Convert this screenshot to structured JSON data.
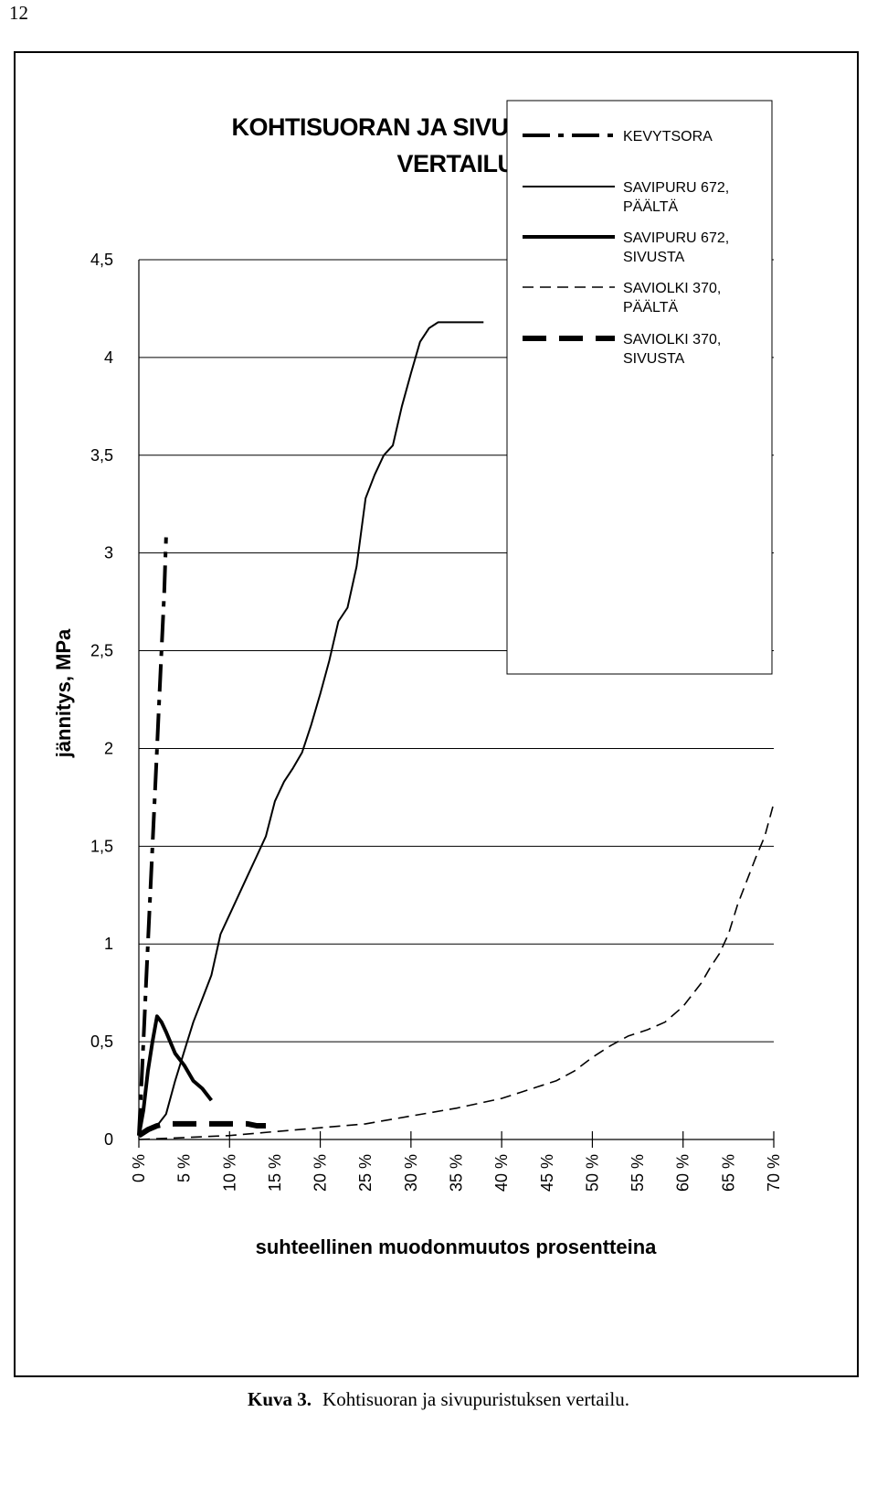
{
  "page_number": "12",
  "caption": {
    "label": "Kuva 3.",
    "text": "Kohtisuoran ja sivupuristuksen vertailu."
  },
  "chart_data": {
    "type": "line",
    "title_lines": [
      "KOHTISUORAN JA SIVUPURISTUKSEN",
      "VERTAILU"
    ],
    "xlabel": "suhteellinen muodonmuutos prosentteina",
    "ylabel": "jännitys, MPa",
    "xlim": [
      0,
      70
    ],
    "ylim": [
      0,
      4.5
    ],
    "grid": "horizontal",
    "legend_position": "top-right",
    "y_ticks": [
      0,
      0.5,
      1,
      1.5,
      2,
      2.5,
      3,
      3.5,
      4,
      4.5
    ],
    "y_tick_labels": [
      "0",
      "0,5",
      "1",
      "1,5",
      "2",
      "2,5",
      "3",
      "3,5",
      "4",
      "4,5"
    ],
    "x_ticks": [
      0,
      5,
      10,
      15,
      20,
      25,
      30,
      35,
      40,
      45,
      50,
      55,
      60,
      65,
      70
    ],
    "x_tick_labels": [
      "0 %",
      "5 %",
      "10 %",
      "15 %",
      "20 %",
      "25 %",
      "30 %",
      "35 %",
      "40 %",
      "45 %",
      "50 %",
      "55 %",
      "60 %",
      "65 %",
      "70 %"
    ],
    "series": [
      {
        "name": "KEVYTSORA",
        "style": "dash-dot",
        "x": [
          0,
          0.2,
          0.4,
          0.6,
          0.8,
          1.0,
          1.2,
          1.4,
          1.6,
          1.8,
          2.0,
          2.2,
          2.4,
          2.6,
          2.8,
          3.0
        ],
        "y": [
          0.02,
          0.2,
          0.4,
          0.6,
          0.8,
          1.0,
          1.2,
          1.4,
          1.6,
          1.8,
          2.0,
          2.2,
          2.4,
          2.6,
          2.8,
          3.08
        ]
      },
      {
        "name": "SAVIPURU 672, PÄÄLTÄ",
        "style": "thin-solid",
        "x": [
          0,
          1,
          2,
          3,
          4,
          5,
          6,
          7,
          8,
          9,
          10,
          11,
          12,
          13,
          14,
          15,
          16,
          17,
          18,
          19,
          20,
          21,
          22,
          23,
          24,
          25,
          26,
          27,
          28,
          29,
          30,
          31,
          32,
          33,
          34,
          35,
          36,
          37,
          38
        ],
        "y": [
          0.02,
          0.04,
          0.07,
          0.13,
          0.3,
          0.45,
          0.6,
          0.72,
          0.84,
          1.05,
          1.15,
          1.25,
          1.35,
          1.45,
          1.55,
          1.73,
          1.83,
          1.9,
          1.98,
          2.12,
          2.28,
          2.45,
          2.65,
          2.72,
          2.93,
          3.28,
          3.4,
          3.5,
          3.55,
          3.75,
          3.92,
          4.08,
          4.15,
          4.18,
          4.18,
          4.18,
          4.18,
          4.18,
          4.18
        ]
      },
      {
        "name": "SAVIPURU 672, SIVUSTA",
        "style": "thick-solid",
        "x": [
          0,
          0.5,
          1,
          1.5,
          2,
          2.5,
          3,
          4,
          5,
          6,
          7,
          8
        ],
        "y": [
          0.02,
          0.15,
          0.35,
          0.5,
          0.63,
          0.6,
          0.55,
          0.44,
          0.38,
          0.3,
          0.26,
          0.2
        ]
      },
      {
        "name": "SAVIOLKI 370, PÄÄLTÄ",
        "style": "thin-dashed",
        "x": [
          0,
          5,
          10,
          15,
          20,
          25,
          30,
          35,
          40,
          42,
          44,
          46,
          48,
          50,
          52,
          54,
          56,
          58,
          60,
          62,
          63,
          64,
          65,
          66,
          67,
          68,
          69,
          70
        ],
        "y": [
          0,
          0.01,
          0.02,
          0.04,
          0.06,
          0.08,
          0.12,
          0.16,
          0.21,
          0.24,
          0.27,
          0.3,
          0.35,
          0.42,
          0.48,
          0.53,
          0.56,
          0.6,
          0.68,
          0.8,
          0.88,
          0.95,
          1.05,
          1.2,
          1.32,
          1.44,
          1.55,
          1.72
        ]
      },
      {
        "name": "SAVIOLKI 370, SIVUSTA",
        "style": "thick-dashed",
        "x": [
          0,
          1,
          2,
          3,
          4,
          5,
          6,
          7,
          8,
          9,
          10,
          11,
          12,
          13,
          14
        ],
        "y": [
          0.02,
          0.05,
          0.07,
          0.08,
          0.08,
          0.08,
          0.08,
          0.08,
          0.08,
          0.08,
          0.08,
          0.08,
          0.08,
          0.07,
          0.07
        ]
      }
    ],
    "legend": [
      {
        "series": "KEVYTSORA",
        "lines": [
          "KEVYTSORA"
        ]
      },
      {
        "series": "SAVIPURU 672, PÄÄLTÄ",
        "lines": [
          "SAVIPURU 672,",
          "PÄÄLTÄ"
        ]
      },
      {
        "series": "SAVIPURU 672, SIVUSTA",
        "lines": [
          "SAVIPURU 672,",
          "SIVUSTA"
        ]
      },
      {
        "series": "SAVIOLKI 370, PÄÄLTÄ",
        "lines": [
          "SAVIOLKI 370,",
          "PÄÄLTÄ"
        ]
      },
      {
        "series": "SAVIOLKI 370, SIVUSTA",
        "lines": [
          "SAVIOLKI 370,",
          "SIVUSTA"
        ]
      }
    ]
  }
}
